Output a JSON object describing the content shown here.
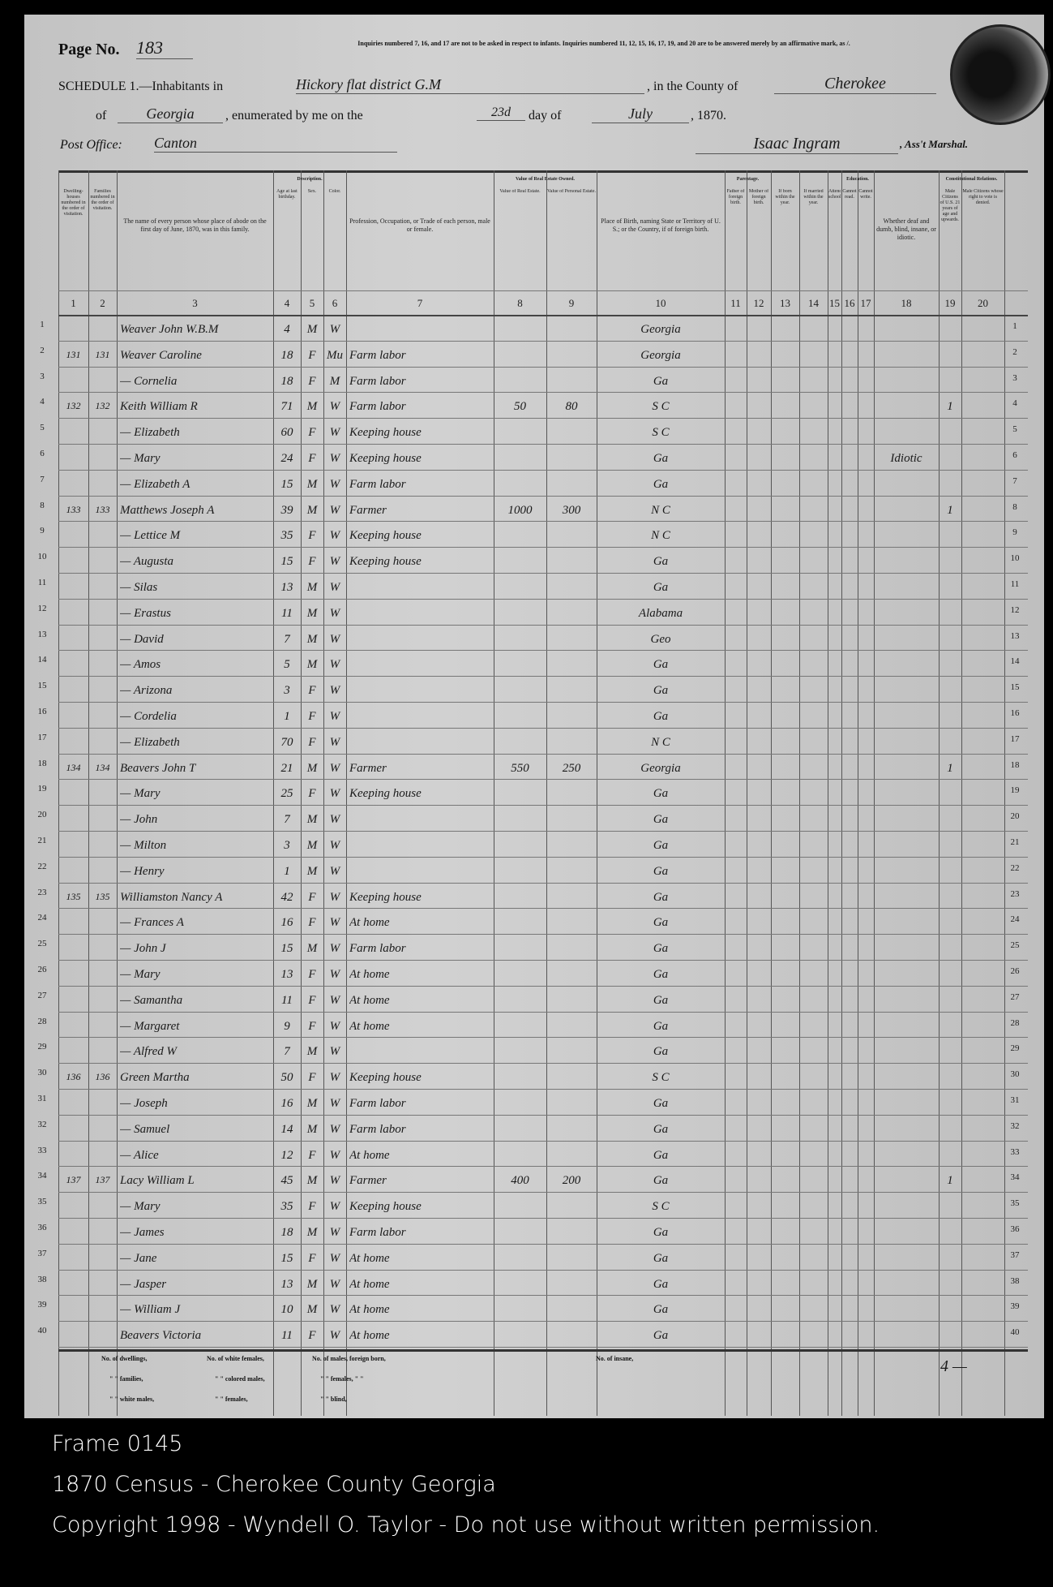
{
  "header": {
    "page_label": "Page No.",
    "page_no": "183",
    "instructions": "Inquiries numbered 7, 16, and 17 are not to be asked in respect to infants. Inquiries numbered 11, 12, 15, 16, 17, 19, and 20 are to be answered merely by an affirmative mark, as /.",
    "schedule_label": "SCHEDULE 1.—Inhabitants in",
    "district": "Hickory flat district G.M",
    "county_label": ", in the County of",
    "county": "Cherokee",
    "state_label": "of",
    "state": "Georgia",
    "enumerated_label": ", enumerated by me on the",
    "day": "23d",
    "day_label": "day of",
    "month": "July",
    "year": ", 1870.",
    "post_office_label": "Post Office:",
    "post_office": "Canton",
    "marshal": "Isaac Ingram",
    "marshal_label": ", Ass't Marshal."
  },
  "columns": {
    "headers": [
      "Dwelling-houses numbered in the order of visitation.",
      "Families numbered in the order of visitation.",
      "The name of every person whose place of abode on the first day of June, 1870, was in this family.",
      "Age at last birthday.",
      "Sex.",
      "Color.",
      "Profession, Occupation, or Trade of each person, male or female.",
      "Value of Real Estate.",
      "Value of Personal Estate.",
      "Place of Birth, naming State or Territory of U. S.; or the Country, if of foreign birth.",
      "Father of foreign birth.",
      "Mother of foreign birth.",
      "If born within the year.",
      "If married within the year.",
      "Attended school.",
      "Cannot read.",
      "Cannot write.",
      "Whether deaf and dumb, blind, insane, or idiotic.",
      "Male Citizens of U.S. 21 years of age and upwards.",
      "Male Citizens whose right to vote is denied."
    ],
    "groups": [
      "Description.",
      "Value of Real Estate Owned.",
      "Parentage.",
      "Education.",
      "Constitutional Relations."
    ],
    "numbers": [
      "1",
      "2",
      "3",
      "4",
      "5",
      "6",
      "7",
      "8",
      "9",
      "10",
      "11",
      "12",
      "13",
      "14",
      "15",
      "16",
      "17",
      "18",
      "19",
      "20"
    ]
  },
  "rows": [
    [
      "",
      "",
      "Weaver John W.B.M",
      "4",
      "M",
      "W",
      "",
      "",
      "",
      "Georgia",
      "",
      ""
    ],
    [
      "131",
      "131",
      "Weaver Caroline",
      "18",
      "F",
      "Mu",
      "Farm labor",
      "",
      "",
      "Georgia",
      "",
      ""
    ],
    [
      "",
      "",
      "— Cornelia",
      "18",
      "F",
      "M",
      "Farm labor",
      "",
      "",
      "Ga",
      "",
      ""
    ],
    [
      "132",
      "132",
      "Keith William R",
      "71",
      "M",
      "W",
      "Farm labor",
      "50",
      "80",
      "S C",
      "",
      "1"
    ],
    [
      "",
      "",
      "— Elizabeth",
      "60",
      "F",
      "W",
      "Keeping house",
      "",
      "",
      "S C",
      "",
      ""
    ],
    [
      "",
      "",
      "— Mary",
      "24",
      "F",
      "W",
      "Keeping house",
      "",
      "",
      "Ga",
      "Idiotic",
      ""
    ],
    [
      "",
      "",
      "— Elizabeth A",
      "15",
      "M",
      "W",
      "Farm labor",
      "",
      "",
      "Ga",
      "",
      ""
    ],
    [
      "133",
      "133",
      "Matthews Joseph A",
      "39",
      "M",
      "W",
      "Farmer",
      "1000",
      "300",
      "N C",
      "",
      "1"
    ],
    [
      "",
      "",
      "— Lettice M",
      "35",
      "F",
      "W",
      "Keeping house",
      "",
      "",
      "N C",
      "",
      ""
    ],
    [
      "",
      "",
      "— Augusta",
      "15",
      "F",
      "W",
      "Keeping house",
      "",
      "",
      "Ga",
      "",
      ""
    ],
    [
      "",
      "",
      "— Silas",
      "13",
      "M",
      "W",
      "",
      "",
      "",
      "Ga",
      "",
      ""
    ],
    [
      "",
      "",
      "— Erastus",
      "11",
      "M",
      "W",
      "",
      "",
      "",
      "Alabama",
      "",
      ""
    ],
    [
      "",
      "",
      "— David",
      "7",
      "M",
      "W",
      "",
      "",
      "",
      "Geo",
      "",
      ""
    ],
    [
      "",
      "",
      "— Amos",
      "5",
      "M",
      "W",
      "",
      "",
      "",
      "Ga",
      "",
      ""
    ],
    [
      "",
      "",
      "— Arizona",
      "3",
      "F",
      "W",
      "",
      "",
      "",
      "Ga",
      "",
      ""
    ],
    [
      "",
      "",
      "— Cordelia",
      "1",
      "F",
      "W",
      "",
      "",
      "",
      "Ga",
      "",
      ""
    ],
    [
      "",
      "",
      "— Elizabeth",
      "70",
      "F",
      "W",
      "",
      "",
      "",
      "N C",
      "",
      ""
    ],
    [
      "134",
      "134",
      "Beavers John T",
      "21",
      "M",
      "W",
      "Farmer",
      "550",
      "250",
      "Georgia",
      "",
      "1"
    ],
    [
      "",
      "",
      "— Mary",
      "25",
      "F",
      "W",
      "Keeping house",
      "",
      "",
      "Ga",
      "",
      ""
    ],
    [
      "",
      "",
      "— John",
      "7",
      "M",
      "W",
      "",
      "",
      "",
      "Ga",
      "",
      ""
    ],
    [
      "",
      "",
      "— Milton",
      "3",
      "M",
      "W",
      "",
      "",
      "",
      "Ga",
      "",
      ""
    ],
    [
      "",
      "",
      "— Henry",
      "1",
      "M",
      "W",
      "",
      "",
      "",
      "Ga",
      "",
      ""
    ],
    [
      "135",
      "135",
      "Williamston Nancy A",
      "42",
      "F",
      "W",
      "Keeping house",
      "",
      "",
      "Ga",
      "",
      ""
    ],
    [
      "",
      "",
      "— Frances A",
      "16",
      "F",
      "W",
      "At home",
      "",
      "",
      "Ga",
      "",
      ""
    ],
    [
      "",
      "",
      "— John J",
      "15",
      "M",
      "W",
      "Farm labor",
      "",
      "",
      "Ga",
      "",
      ""
    ],
    [
      "",
      "",
      "— Mary",
      "13",
      "F",
      "W",
      "At home",
      "",
      "",
      "Ga",
      "",
      ""
    ],
    [
      "",
      "",
      "— Samantha",
      "11",
      "F",
      "W",
      "At home",
      "",
      "",
      "Ga",
      "",
      ""
    ],
    [
      "",
      "",
      "— Margaret",
      "9",
      "F",
      "W",
      "At home",
      "",
      "",
      "Ga",
      "",
      ""
    ],
    [
      "",
      "",
      "— Alfred W",
      "7",
      "M",
      "W",
      "",
      "",
      "",
      "Ga",
      "",
      ""
    ],
    [
      "136",
      "136",
      "Green Martha",
      "50",
      "F",
      "W",
      "Keeping house",
      "",
      "",
      "S C",
      "",
      ""
    ],
    [
      "",
      "",
      "— Joseph",
      "16",
      "M",
      "W",
      "Farm labor",
      "",
      "",
      "Ga",
      "",
      ""
    ],
    [
      "",
      "",
      "— Samuel",
      "14",
      "M",
      "W",
      "Farm labor",
      "",
      "",
      "Ga",
      "",
      ""
    ],
    [
      "",
      "",
      "— Alice",
      "12",
      "F",
      "W",
      "At home",
      "",
      "",
      "Ga",
      "",
      ""
    ],
    [
      "137",
      "137",
      "Lacy William L",
      "45",
      "M",
      "W",
      "Farmer",
      "400",
      "200",
      "Ga",
      "",
      "1"
    ],
    [
      "",
      "",
      "— Mary",
      "35",
      "F",
      "W",
      "Keeping house",
      "",
      "",
      "S C",
      "",
      ""
    ],
    [
      "",
      "",
      "— James",
      "18",
      "M",
      "W",
      "Farm labor",
      "",
      "",
      "Ga",
      "",
      ""
    ],
    [
      "",
      "",
      "— Jane",
      "15",
      "F",
      "W",
      "At home",
      "",
      "",
      "Ga",
      "",
      ""
    ],
    [
      "",
      "",
      "— Jasper",
      "13",
      "M",
      "W",
      "At home",
      "",
      "",
      "Ga",
      "",
      ""
    ],
    [
      "",
      "",
      "— William J",
      "10",
      "M",
      "W",
      "At home",
      "",
      "",
      "Ga",
      "",
      ""
    ],
    [
      "",
      "",
      "Beavers Victoria",
      "11",
      "F",
      "W",
      "At home",
      "",
      "",
      "Ga",
      "",
      ""
    ]
  ],
  "summary": {
    "dwellings": "No. of dwellings,",
    "families": "\" \" families,",
    "white_males": "\" \" white males,",
    "white_females": "No. of white females,",
    "colored_males": "\" \" colored males,",
    "females": "\" \" females,",
    "males_foreign": "No. of males, foreign born,",
    "females_foreign": "\" \" females, \" \"",
    "blind": "\" \" blind,",
    "insane": "No. of insane,",
    "tally": "4 —"
  },
  "footer": {
    "frame": "Frame 0145",
    "title": "1870 Census - Cherokee County Georgia",
    "copyright": "Copyright 1998 - Wyndell O. Taylor - Do not use without written permission."
  }
}
